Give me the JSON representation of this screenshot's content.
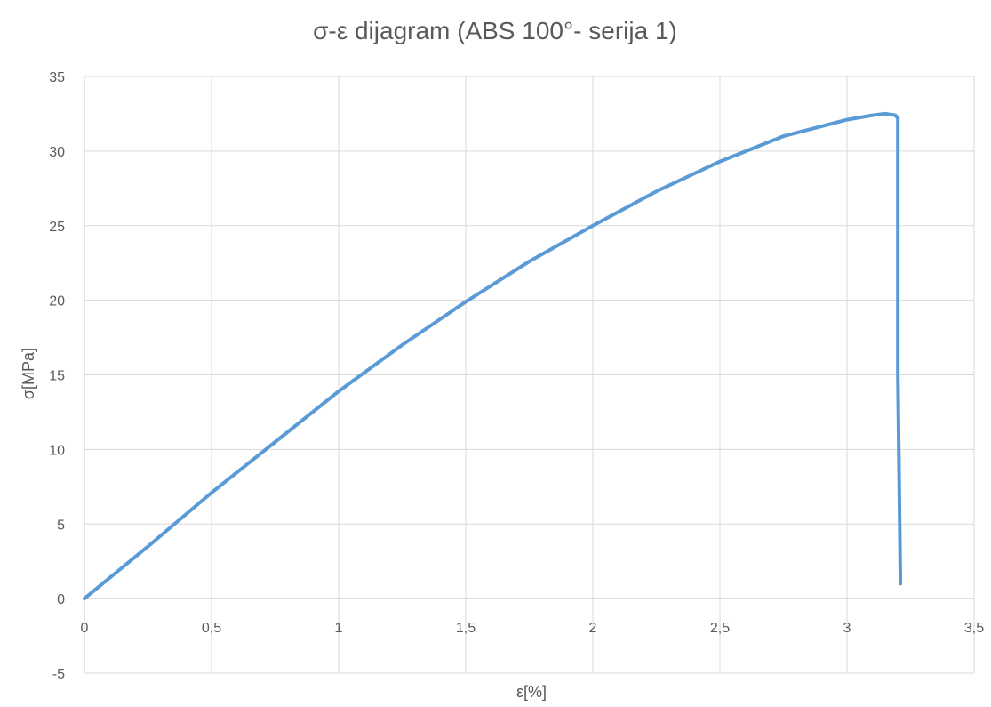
{
  "chart_data": {
    "type": "line",
    "title": "σ-ε dijagram (ABS 100°- serija 1)",
    "xlabel": "ε[%]",
    "ylabel": "σ[MPa]",
    "xlim": [
      0,
      3.5
    ],
    "ylim": [
      -5,
      35
    ],
    "x_ticks": [
      0,
      0.5,
      1,
      1.5,
      2,
      2.5,
      3,
      3.5
    ],
    "x_tick_labels": [
      "0",
      "0,5",
      "1",
      "1,5",
      "2",
      "2,5",
      "3",
      "3,5"
    ],
    "y_ticks": [
      -5,
      0,
      5,
      10,
      15,
      20,
      25,
      30,
      35
    ],
    "y_tick_labels": [
      "-5",
      "0",
      "5",
      "10",
      "15",
      "20",
      "25",
      "30",
      "35"
    ],
    "grid": true,
    "series": [
      {
        "color": "#5b9bd5",
        "x": [
          0,
          0.1,
          0.25,
          0.5,
          0.75,
          1.0,
          1.25,
          1.5,
          1.75,
          2.0,
          2.25,
          2.5,
          2.75,
          3.0,
          3.1,
          3.15,
          3.19,
          3.2,
          3.2,
          3.21
        ],
        "y": [
          0,
          1.4,
          3.5,
          7.1,
          10.5,
          13.9,
          17.0,
          19.9,
          22.6,
          25.0,
          27.3,
          29.3,
          31.0,
          32.1,
          32.4,
          32.5,
          32.4,
          32.2,
          15.0,
          1.0
        ]
      }
    ]
  }
}
